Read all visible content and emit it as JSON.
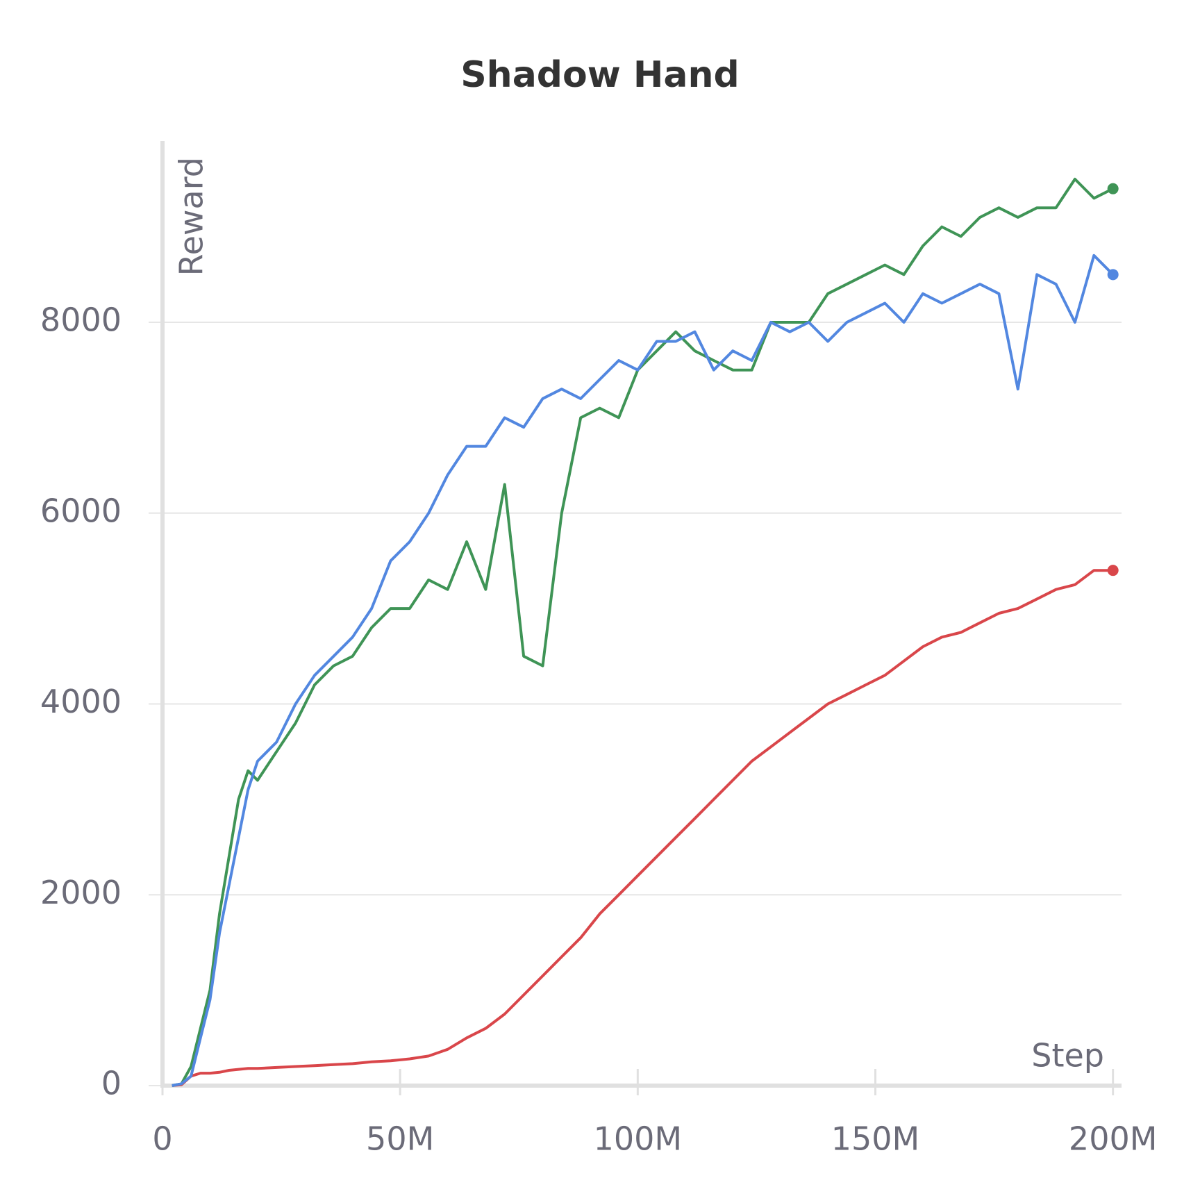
{
  "chart_data": {
    "type": "line",
    "title": "Shadow Hand",
    "y_label": "Reward",
    "x_label": "Step",
    "x": [
      2000000,
      4000000,
      6000000,
      8000000,
      10000000,
      12000000,
      14000000,
      16000000,
      18000000,
      20000000,
      24000000,
      28000000,
      32000000,
      36000000,
      40000000,
      44000000,
      48000000,
      52000000,
      56000000,
      60000000,
      64000000,
      68000000,
      72000000,
      76000000,
      80000000,
      84000000,
      88000000,
      92000000,
      96000000,
      100000000,
      104000000,
      108000000,
      112000000,
      116000000,
      120000000,
      124000000,
      128000000,
      132000000,
      136000000,
      140000000,
      144000000,
      148000000,
      152000000,
      156000000,
      160000000,
      164000000,
      168000000,
      172000000,
      176000000,
      180000000,
      184000000,
      188000000,
      192000000,
      196000000,
      200000000
    ],
    "series": [
      {
        "color": "#d9464a",
        "values": [
          0,
          10,
          100,
          130,
          130,
          140,
          160,
          170,
          180,
          180,
          190,
          200,
          210,
          220,
          230,
          250,
          260,
          280,
          310,
          380,
          500,
          600,
          750,
          950,
          1150,
          1350,
          1550,
          1800,
          2000,
          2200,
          2400,
          2600,
          2800,
          3000,
          3200,
          3400,
          3550,
          3700,
          3850,
          4000,
          4100,
          4200,
          4300,
          4450,
          4600,
          4700,
          4750,
          4850,
          4950,
          5000,
          5100,
          5200,
          5250,
          5400,
          5400
        ]
      },
      {
        "color": "#3f9456",
        "values": [
          0,
          20,
          200,
          600,
          1000,
          1800,
          2400,
          3000,
          3300,
          3200,
          3500,
          3800,
          4200,
          4400,
          4500,
          4800,
          5000,
          5000,
          5300,
          5200,
          5700,
          5200,
          6300,
          4500,
          4400,
          6000,
          7000,
          7100,
          7000,
          7500,
          7700,
          7900,
          7700,
          7600,
          7500,
          7500,
          8000,
          8000,
          8000,
          8300,
          8400,
          8500,
          8600,
          8500,
          8800,
          9000,
          8900,
          9100,
          9200,
          9100,
          9200,
          9200,
          9500,
          9300,
          9400
        ]
      },
      {
        "color": "#5287e0",
        "values": [
          0,
          20,
          100,
          500,
          900,
          1600,
          2100,
          2600,
          3100,
          3400,
          3600,
          4000,
          4300,
          4500,
          4700,
          5000,
          5500,
          5700,
          6000,
          6400,
          6700,
          6700,
          7000,
          6900,
          7200,
          7300,
          7200,
          7400,
          7600,
          7500,
          7800,
          7800,
          7900,
          7500,
          7700,
          7600,
          8000,
          7900,
          8000,
          7800,
          8000,
          8100,
          8200,
          8000,
          8300,
          8200,
          8300,
          8400,
          8300,
          7300,
          8500,
          8400,
          8000,
          8700,
          8500
        ]
      }
    ],
    "xlim": [
      0,
      201800000
    ],
    "xticks": [
      0,
      {
        "value": 50000000,
        "label": "50M"
      },
      {
        "value": 100000000,
        "label": "100M"
      },
      {
        "value": 150000000,
        "label": "150M"
      },
      {
        "value": 200000000,
        "label": "200M"
      }
    ],
    "ylim": [
      0,
      9900
    ],
    "yticks": [
      0,
      2000,
      4000,
      6000,
      8000
    ],
    "grid": true
  }
}
